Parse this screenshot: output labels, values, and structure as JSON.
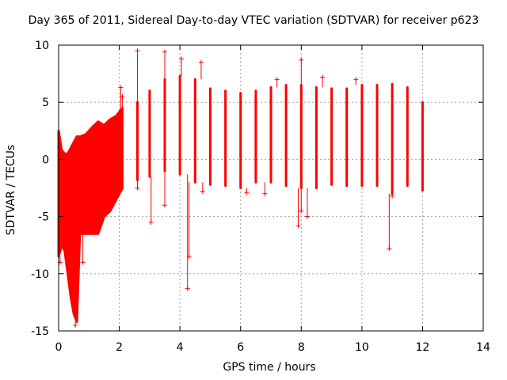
{
  "chart_data": {
    "type": "scatter",
    "title": "Day 365 of 2011, Sidereal Day-to-day VTEC variation (SDTVAR) for receiver p623",
    "xlabel": "GPS time / hours",
    "ylabel": "SDTVAR / TECUs",
    "xlim": [
      0,
      14
    ],
    "ylim": [
      -15,
      10
    ],
    "xticks": [
      0,
      2,
      4,
      6,
      8,
      10,
      12,
      14
    ],
    "yticks": [
      -15,
      -10,
      -5,
      0,
      5,
      10
    ],
    "grid": true,
    "marker": "+",
    "color": "#ff0000",
    "series": [
      {
        "name": "SDTVAR",
        "envelope": [
          {
            "x": 0.0,
            "ymin": -8.5,
            "ymax": 2.5
          },
          {
            "x": 0.1,
            "ymin": -7.5,
            "ymax": 0.8
          },
          {
            "x": 0.2,
            "ymin": -8.0,
            "ymax": 0.5
          },
          {
            "x": 0.3,
            "ymin": -10.0,
            "ymax": 0.5
          },
          {
            "x": 0.4,
            "ymin": -12.0,
            "ymax": 1.0
          },
          {
            "x": 0.5,
            "ymin": -13.5,
            "ymax": 1.5
          },
          {
            "x": 0.6,
            "ymin": -14.2,
            "ymax": 2.0
          },
          {
            "x": 0.7,
            "ymin": -6.5,
            "ymax": 2.0
          },
          {
            "x": 0.9,
            "ymin": -6.5,
            "ymax": 2.2
          },
          {
            "x": 1.1,
            "ymin": -6.5,
            "ymax": 2.8
          },
          {
            "x": 1.3,
            "ymin": -6.5,
            "ymax": 3.3
          },
          {
            "x": 1.5,
            "ymin": -5.0,
            "ymax": 3.0
          },
          {
            "x": 1.7,
            "ymin": -4.5,
            "ymax": 3.5
          },
          {
            "x": 1.9,
            "ymin": -3.5,
            "ymax": 3.8
          },
          {
            "x": 2.1,
            "ymin": -2.5,
            "ymax": 4.5
          },
          {
            "x": 2.6,
            "ymin": -1.8,
            "ymax": 5.0
          },
          {
            "x": 3.0,
            "ymin": -1.5,
            "ymax": 6.0
          },
          {
            "x": 3.5,
            "ymin": -1.0,
            "ymax": 7.0
          },
          {
            "x": 4.0,
            "ymin": -1.3,
            "ymax": 7.3
          },
          {
            "x": 4.5,
            "ymin": -2.0,
            "ymax": 7.0
          },
          {
            "x": 5.0,
            "ymin": -2.2,
            "ymax": 6.2
          },
          {
            "x": 5.5,
            "ymin": -2.3,
            "ymax": 6.0
          },
          {
            "x": 6.0,
            "ymin": -2.5,
            "ymax": 5.8
          },
          {
            "x": 6.5,
            "ymin": -2.0,
            "ymax": 6.0
          },
          {
            "x": 7.0,
            "ymin": -2.0,
            "ymax": 6.3
          },
          {
            "x": 7.5,
            "ymin": -2.3,
            "ymax": 6.5
          },
          {
            "x": 8.0,
            "ymin": -2.5,
            "ymax": 6.5
          },
          {
            "x": 8.5,
            "ymin": -2.5,
            "ymax": 6.3
          },
          {
            "x": 9.0,
            "ymin": -2.2,
            "ymax": 6.2
          },
          {
            "x": 9.5,
            "ymin": -2.3,
            "ymax": 6.2
          },
          {
            "x": 10.0,
            "ymin": -2.3,
            "ymax": 6.5
          },
          {
            "x": 10.5,
            "ymin": -2.3,
            "ymax": 6.5
          },
          {
            "x": 11.0,
            "ymin": -3.0,
            "ymax": 6.6
          },
          {
            "x": 11.5,
            "ymin": -2.3,
            "ymax": 6.3
          },
          {
            "x": 12.0,
            "ymin": -2.7,
            "ymax": 5.0
          }
        ],
        "outliers": [
          {
            "x": 0.05,
            "y": -9.0
          },
          {
            "x": 0.55,
            "y": -14.5
          },
          {
            "x": 0.8,
            "y": -9.0
          },
          {
            "x": 2.05,
            "y": 6.3
          },
          {
            "x": 2.1,
            "y": 5.5
          },
          {
            "x": 2.6,
            "y": 9.5
          },
          {
            "x": 2.6,
            "y": -2.5
          },
          {
            "x": 3.05,
            "y": -5.5
          },
          {
            "x": 3.5,
            "y": 9.4
          },
          {
            "x": 3.5,
            "y": -4.0
          },
          {
            "x": 4.05,
            "y": 8.8
          },
          {
            "x": 4.25,
            "y": -11.3
          },
          {
            "x": 4.3,
            "y": -8.5
          },
          {
            "x": 4.7,
            "y": 8.5
          },
          {
            "x": 4.75,
            "y": -2.8
          },
          {
            "x": 6.2,
            "y": -2.9
          },
          {
            "x": 6.8,
            "y": -3.0
          },
          {
            "x": 7.2,
            "y": 7.0
          },
          {
            "x": 7.9,
            "y": -5.8
          },
          {
            "x": 8.0,
            "y": 8.7
          },
          {
            "x": 8.0,
            "y": -4.5
          },
          {
            "x": 8.2,
            "y": -5.0
          },
          {
            "x": 8.7,
            "y": 7.2
          },
          {
            "x": 9.8,
            "y": 7.0
          },
          {
            "x": 10.9,
            "y": -7.8
          },
          {
            "x": 11.0,
            "y": -3.2
          }
        ]
      }
    ]
  }
}
